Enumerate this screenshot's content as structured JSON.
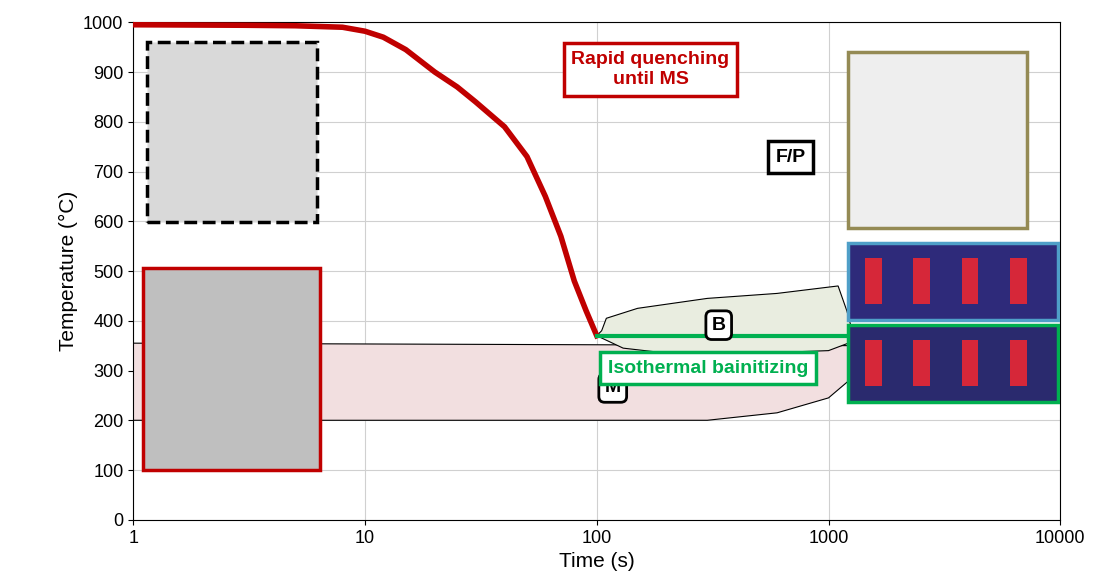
{
  "chart_data": {
    "type": "line",
    "x_label": "Time (s)",
    "y_label": "Temperature (°C)",
    "log": "x",
    "grid": true,
    "xlim": [
      1,
      10000
    ],
    "xticks": [
      1,
      10,
      100,
      1000,
      10000
    ],
    "ylim": [
      0,
      1000
    ],
    "yticks": [
      0,
      100,
      200,
      300,
      400,
      500,
      600,
      700,
      800,
      900,
      1000
    ],
    "series": [
      {
        "color": "#c00000",
        "x": [
          1,
          3,
          5,
          8,
          10,
          12,
          15,
          20,
          25,
          30,
          40,
          50,
          60,
          70,
          80,
          90,
          100
        ],
        "values": [
          995,
          994,
          993,
          990,
          982,
          970,
          945,
          900,
          870,
          840,
          790,
          730,
          650,
          570,
          480,
          420,
          370
        ]
      },
      {
        "color": "#00b050",
        "x": [
          100,
          1300
        ],
        "values": [
          370,
          370
        ]
      }
    ],
    "regions": [
      {
        "label": "M",
        "color": "#f2dfe0",
        "x": [
          1,
          1300,
          1300,
          1000,
          600,
          300,
          1
        ],
        "y": [
          355,
          350,
          290,
          245,
          215,
          200,
          200
        ]
      },
      {
        "label": "B",
        "color": "#e9ede0",
        "x": [
          105,
          110,
          150,
          300,
          600,
          1100,
          1200,
          1300,
          1000,
          500,
          200,
          130,
          100
        ],
        "y": [
          380,
          405,
          425,
          445,
          455,
          470,
          420,
          360,
          340,
          335,
          335,
          345,
          370
        ]
      }
    ],
    "annotations": [
      {
        "text": "Rapid quenching\nuntil MS",
        "color": "#c00000"
      },
      {
        "text": "F/P",
        "color": "#000000"
      },
      {
        "text": "Isothermal bainitizing",
        "color": "#00b050"
      }
    ]
  }
}
